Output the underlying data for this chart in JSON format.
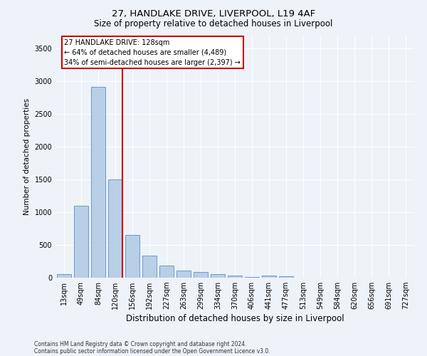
{
  "title1": "27, HANDLAKE DRIVE, LIVERPOOL, L19 4AF",
  "title2": "Size of property relative to detached houses in Liverpool",
  "xlabel": "Distribution of detached houses by size in Liverpool",
  "ylabel": "Number of detached properties",
  "categories": [
    "13sqm",
    "49sqm",
    "84sqm",
    "120sqm",
    "156sqm",
    "192sqm",
    "227sqm",
    "263sqm",
    "299sqm",
    "334sqm",
    "370sqm",
    "406sqm",
    "441sqm",
    "477sqm",
    "513sqm",
    "549sqm",
    "584sqm",
    "620sqm",
    "656sqm",
    "691sqm",
    "727sqm"
  ],
  "values": [
    55,
    1100,
    2920,
    1500,
    650,
    340,
    190,
    105,
    90,
    55,
    30,
    10,
    30,
    20,
    0,
    0,
    0,
    0,
    0,
    0,
    0
  ],
  "bar_color": "#b8cfe8",
  "bar_edge_color": "#5a8fc0",
  "vline_x_index": 3,
  "vline_color": "#cc0000",
  "annotation_title": "27 HANDLAKE DRIVE: 128sqm",
  "annotation_line1": "← 64% of detached houses are smaller (4,489)",
  "annotation_line2": "34% of semi-detached houses are larger (2,397) →",
  "annotation_box_facecolor": "#ffffff",
  "annotation_box_edgecolor": "#cc0000",
  "ylim": [
    0,
    3700
  ],
  "yticks": [
    0,
    500,
    1000,
    1500,
    2000,
    2500,
    3000,
    3500
  ],
  "footer1": "Contains HM Land Registry data © Crown copyright and database right 2024.",
  "footer2": "Contains public sector information licensed under the Open Government Licence v3.0.",
  "bg_color": "#eef2f9",
  "plot_bg_color": "#eef2f9",
  "grid_color": "#ffffff",
  "title1_fontsize": 9.5,
  "title2_fontsize": 8.5,
  "xlabel_fontsize": 8.5,
  "ylabel_fontsize": 7.5,
  "tick_fontsize": 7,
  "footer_fontsize": 5.5
}
